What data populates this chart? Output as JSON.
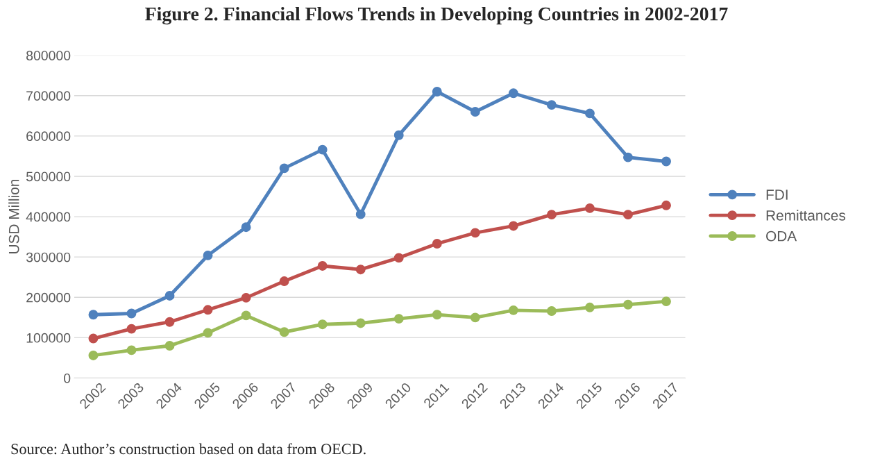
{
  "chart_data": {
    "type": "line",
    "title": "Figure 2. Financial Flows Trends in Developing Countries in 2002-2017",
    "ylabel": "USD Million",
    "categories": [
      "2002",
      "2003",
      "2004",
      "2005",
      "2006",
      "2007",
      "2008",
      "2009",
      "2010",
      "2011",
      "2012",
      "2013",
      "2014",
      "2015",
      "2016",
      "2017"
    ],
    "series": [
      {
        "name": "FDI",
        "color": "#4f81bd",
        "values": [
          157000,
          160000,
          204000,
          304000,
          374000,
          520000,
          566000,
          406000,
          602000,
          710000,
          660000,
          706000,
          677000,
          656000,
          547000,
          537000
        ]
      },
      {
        "name": "Remittances",
        "color": "#c0504d",
        "values": [
          98000,
          122000,
          139000,
          169000,
          199000,
          240000,
          278000,
          269000,
          298000,
          333000,
          360000,
          377000,
          405000,
          421000,
          405000,
          428000
        ]
      },
      {
        "name": "ODA",
        "color": "#9bbb59",
        "values": [
          56000,
          69000,
          80000,
          112000,
          155000,
          114000,
          133000,
          136000,
          147000,
          157000,
          150000,
          168000,
          166000,
          175000,
          182000,
          190000
        ]
      }
    ],
    "ylim": [
      0,
      800000
    ],
    "yticks": [
      0,
      100000,
      200000,
      300000,
      400000,
      500000,
      600000,
      700000,
      800000
    ],
    "grid": "y",
    "legend": "right",
    "marker": "circle",
    "line_style": "solid",
    "annotations": [
      "Source: Author’s construction based on data from OECD."
    ]
  }
}
